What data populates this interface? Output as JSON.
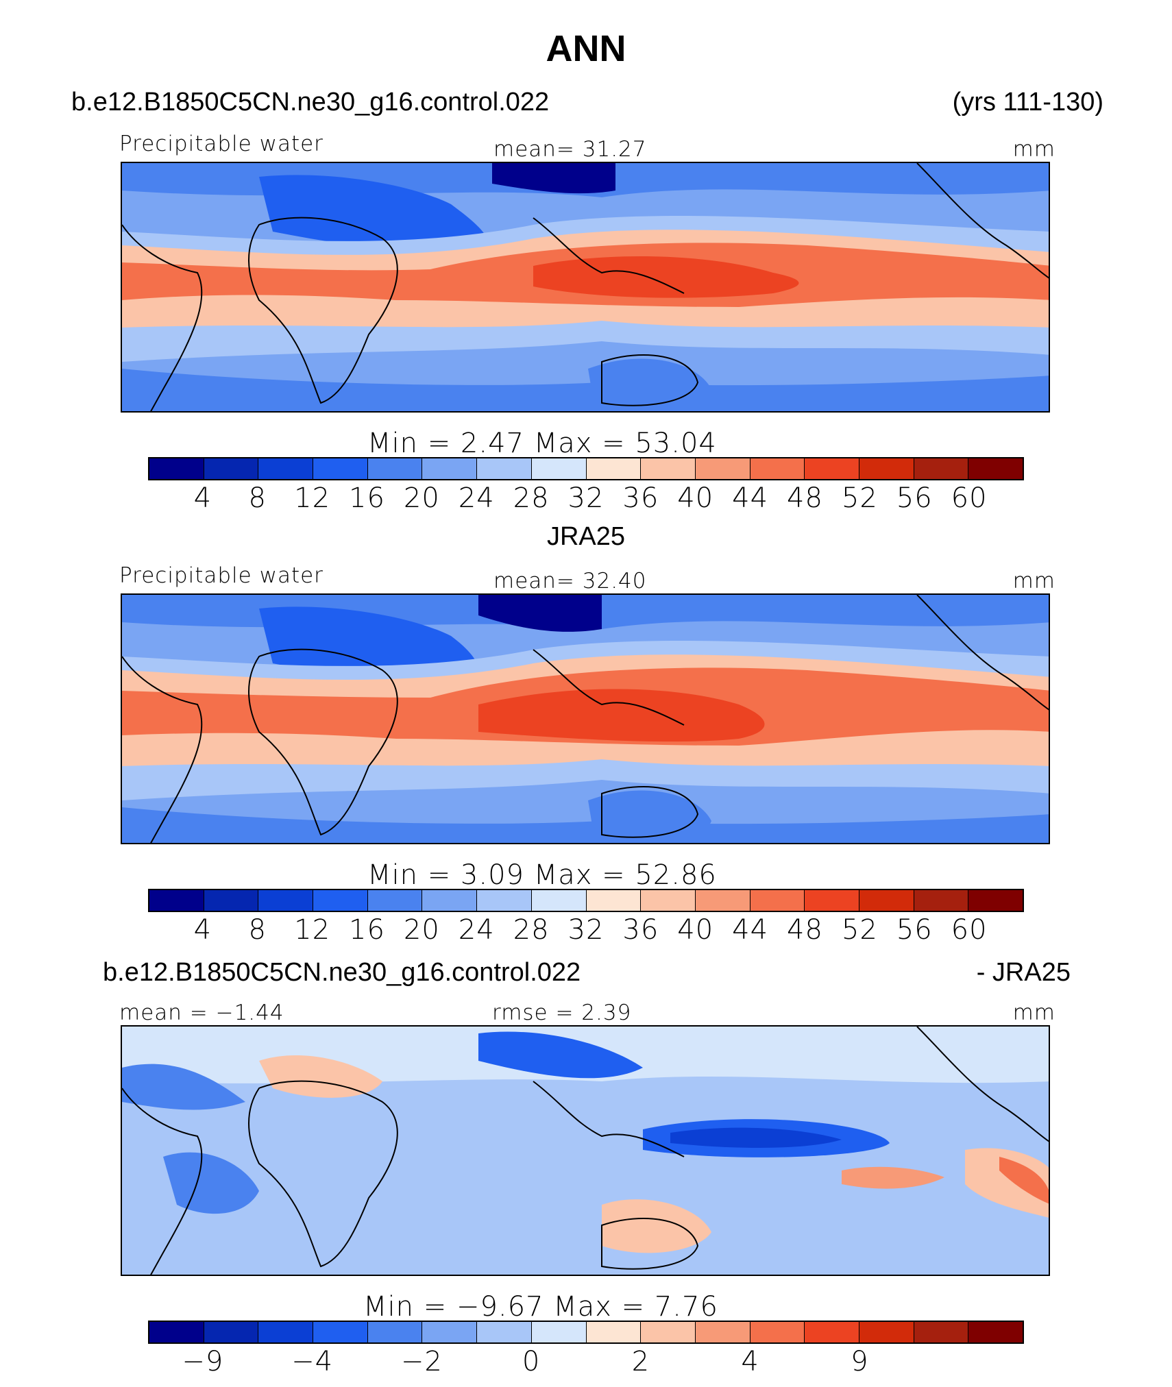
{
  "title": "ANN",
  "panel1": {
    "case_name": "b.e12.B1850C5CN.ne30_g16.control.022",
    "years": "(yrs 111-130)",
    "variable": "Precipitable water",
    "stat_left": "",
    "stat_center": "mean=   31.27",
    "units": "mm",
    "minmax": "Min  =     2.47  Max  =   53.04"
  },
  "panel2": {
    "case_name": "JRA25",
    "variable": "Precipitable water",
    "stat_center": "mean=   32.40",
    "units": "mm",
    "minmax": "Min  =     3.09  Max  =   52.86"
  },
  "panel3": {
    "case_name": "b.e12.B1850C5CN.ne30_g16.control.022",
    "minus_label": "- JRA25",
    "stat_left": "mean =   −1.44",
    "stat_center": "rmse =    2.39",
    "units": "mm",
    "minmax": "Min  =   −9.67  Max  =     7.76"
  },
  "colorbar_abs": {
    "colors": [
      "#00008b",
      "#0526b0",
      "#0b3fd4",
      "#1f5ff0",
      "#4a82ef",
      "#7aa5f3",
      "#a8c6f8",
      "#d5e6fb",
      "#fde5d3",
      "#fbc4a8",
      "#f79a77",
      "#f4704b",
      "#ec4322",
      "#d22b0a",
      "#a5200e",
      "#7f0000"
    ],
    "ticks": [
      "4",
      "8",
      "12",
      "16",
      "20",
      "24",
      "28",
      "32",
      "36",
      "40",
      "44",
      "48",
      "52",
      "56",
      "60"
    ]
  },
  "colorbar_diff": {
    "colors": [
      "#00008b",
      "#0526b0",
      "#0b3fd4",
      "#1f5ff0",
      "#4a82ef",
      "#7aa5f3",
      "#a8c6f8",
      "#d5e6fb",
      "#fde5d3",
      "#fbc4a8",
      "#f79a77",
      "#f4704b",
      "#ec4322",
      "#d22b0a",
      "#a5200e",
      "#7f0000"
    ],
    "ticks": [
      "−9",
      "−4",
      "−2",
      "0",
      "2",
      "4",
      "9"
    ],
    "tick_boundaries": [
      1,
      3,
      5,
      7,
      9,
      11,
      13
    ]
  }
}
